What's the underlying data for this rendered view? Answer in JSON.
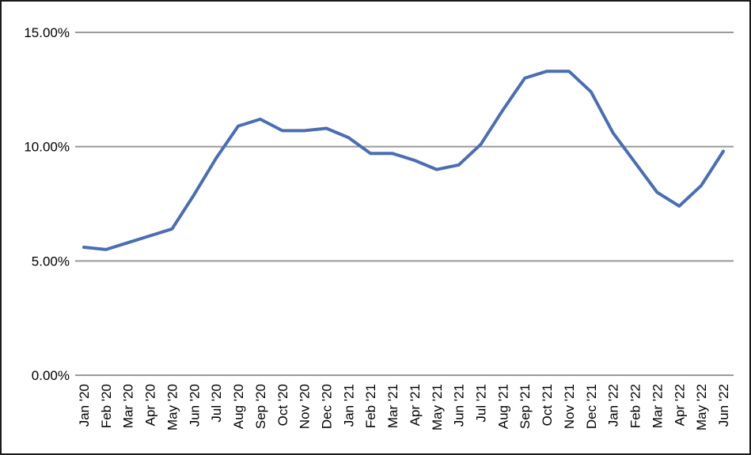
{
  "chart_data": {
    "type": "line",
    "title": "",
    "xlabel": "",
    "ylabel": "",
    "categories": [
      "Jan '20",
      "Feb '20",
      "Mar '20",
      "Apr '20",
      "May '20",
      "Jun '20",
      "Jul '20",
      "Aug '20",
      "Sep '20",
      "Oct '20",
      "Nov '20",
      "Dec '20",
      "Jan '21",
      "Feb '21",
      "Mar '21",
      "Apr '21",
      "May '21",
      "Jun '21",
      "Jul '21",
      "Aug '21",
      "Sep '21",
      "Oct '21",
      "Nov '21",
      "Dec '21",
      "Jan '22",
      "Feb '22",
      "Mar '22",
      "Apr '22",
      "May '22",
      "Jun '22"
    ],
    "values": [
      5.6,
      5.5,
      5.8,
      6.1,
      6.4,
      7.9,
      9.5,
      10.9,
      11.2,
      10.7,
      10.7,
      10.8,
      10.4,
      9.7,
      9.7,
      9.4,
      9.0,
      9.2,
      10.1,
      11.6,
      13.0,
      13.3,
      13.3,
      12.4,
      10.6,
      9.3,
      8.0,
      7.4,
      8.3,
      9.8
    ],
    "ylim": [
      0,
      15
    ],
    "ytick_values": [
      0,
      5,
      10,
      15
    ],
    "ytick_labels": [
      "0.00%",
      "5.00%",
      "10.00%",
      "15.00%"
    ],
    "grid": true,
    "legend": false,
    "line_color": "#4a6db4",
    "gridline_color": "#999999",
    "text_color": "#000000",
    "frame_border_color": "#1a1a1a",
    "background_color": "#ffffff"
  }
}
